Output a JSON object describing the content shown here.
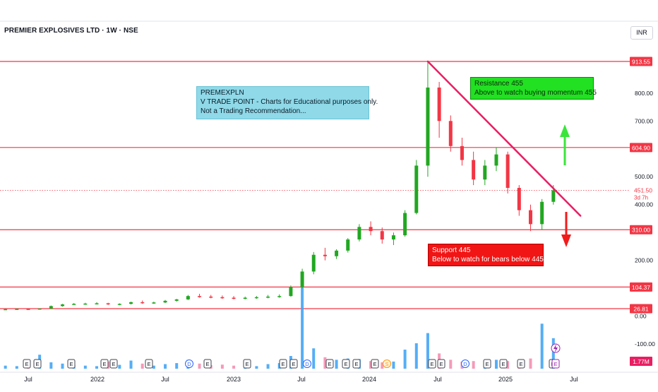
{
  "header": {
    "title": "PREMIER EXPLOSIVES LTD · 1W · NSE",
    "currency": "INR"
  },
  "colors": {
    "up": "#089981",
    "up_candle": "#22a722",
    "down": "#f23645",
    "volume": "#42a5f5",
    "volume_down": "#f48fb1",
    "level_line": "#f23645",
    "trendline": "#e91e63",
    "arrow_up": "#3ae53a",
    "arrow_down": "#f21b1b"
  },
  "notes": {
    "info": [
      "PREMEXPLN",
      "V TRADE POINT - Charts for Educational purposes only.",
      "Not a Trading Recommendation..."
    ],
    "resistance": [
      "Resistance  455",
      "Above to watch buying momentum 455"
    ],
    "support": [
      "Support 445",
      "Below to watch for bears below 445"
    ]
  },
  "chart_data": {
    "type": "candlestick",
    "symbol": "PREMIER EXPLOSIVES LTD",
    "interval": "1W",
    "exchange": "NSE",
    "currency": "INR",
    "x_ticks": [
      "Jul",
      "2022",
      "Jul",
      "2023",
      "Jul",
      "2024",
      "Jul",
      "2025",
      "Jul"
    ],
    "y_ticks": [
      {
        "label": "800.00",
        "value": 800
      },
      {
        "label": "700.00",
        "value": 700
      },
      {
        "label": "500.00",
        "value": 500
      },
      {
        "label": "400.00",
        "value": 400
      },
      {
        "label": "200.00",
        "value": 200
      },
      {
        "label": "0.00",
        "value": 0
      },
      {
        "label": "-100.00",
        "value": -100
      }
    ],
    "horizontal_levels": [
      {
        "label": "913.55",
        "value": 913.55
      },
      {
        "label": "604.90",
        "value": 604.9
      },
      {
        "label": "310.00",
        "value": 310
      },
      {
        "label": "104.37",
        "value": 104.37
      },
      {
        "label": "26.81",
        "value": 26.81
      }
    ],
    "last_price": {
      "label": "451.50",
      "value": 451.5,
      "countdown": "3d 7h"
    },
    "volume_badge": "1.77M",
    "trendline": {
      "from": {
        "date": "2024-06",
        "price": 913.55
      },
      "to": {
        "date": "2025-07",
        "price": 360
      }
    },
    "arrows": [
      {
        "direction": "up",
        "label": ""
      },
      {
        "direction": "down",
        "label": ""
      }
    ],
    "event_markers": [
      "E",
      "E",
      "E",
      "E",
      "E",
      "E",
      "D",
      "E",
      "E",
      "E",
      "E",
      "D",
      "E",
      "E",
      "E",
      "E",
      "S",
      "E",
      "E",
      "D",
      "E",
      "E",
      "E",
      "E",
      "E"
    ],
    "weekly": [
      {
        "date": "2021-05",
        "o": 24,
        "h": 26,
        "l": 22,
        "c": 25,
        "v": 0.12
      },
      {
        "date": "2021-06",
        "o": 25,
        "h": 27,
        "l": 24,
        "c": 26,
        "v": 0.1
      },
      {
        "date": "2021-07",
        "o": 26,
        "h": 28,
        "l": 24,
        "c": 25,
        "v": 0.14
      },
      {
        "date": "2021-08",
        "o": 25,
        "h": 28,
        "l": 23,
        "c": 27,
        "v": 0.55
      },
      {
        "date": "2021-09",
        "o": 27,
        "h": 38,
        "l": 26,
        "c": 36,
        "v": 0.25
      },
      {
        "date": "2021-10",
        "o": 36,
        "h": 44,
        "l": 34,
        "c": 42,
        "v": 0.2
      },
      {
        "date": "2021-11",
        "o": 42,
        "h": 47,
        "l": 40,
        "c": 44,
        "v": 0.15
      },
      {
        "date": "2021-12",
        "o": 44,
        "h": 48,
        "l": 41,
        "c": 45,
        "v": 0.12
      },
      {
        "date": "2022-01",
        "o": 45,
        "h": 50,
        "l": 42,
        "c": 46,
        "v": 0.1
      },
      {
        "date": "2022-02",
        "o": 46,
        "h": 48,
        "l": 40,
        "c": 43,
        "v": 0.28
      },
      {
        "date": "2022-03",
        "o": 43,
        "h": 46,
        "l": 39,
        "c": 44,
        "v": 0.15
      },
      {
        "date": "2022-04",
        "o": 44,
        "h": 52,
        "l": 42,
        "c": 50,
        "v": 0.32
      },
      {
        "date": "2022-05",
        "o": 50,
        "h": 56,
        "l": 44,
        "c": 47,
        "v": 0.2
      },
      {
        "date": "2022-06",
        "o": 47,
        "h": 52,
        "l": 44,
        "c": 49,
        "v": 0.12
      },
      {
        "date": "2022-07",
        "o": 49,
        "h": 58,
        "l": 47,
        "c": 55,
        "v": 0.18
      },
      {
        "date": "2022-08",
        "o": 55,
        "h": 62,
        "l": 52,
        "c": 60,
        "v": 0.22
      },
      {
        "date": "2022-09",
        "o": 60,
        "h": 76,
        "l": 58,
        "c": 72,
        "v": 0.35
      },
      {
        "date": "2022-10",
        "o": 72,
        "h": 80,
        "l": 66,
        "c": 70,
        "v": 0.2
      },
      {
        "date": "2022-11",
        "o": 70,
        "h": 76,
        "l": 64,
        "c": 68,
        "v": 0.14
      },
      {
        "date": "2022-12",
        "o": 68,
        "h": 74,
        "l": 62,
        "c": 66,
        "v": 0.16
      },
      {
        "date": "2023-01",
        "o": 66,
        "h": 72,
        "l": 60,
        "c": 64,
        "v": 0.12
      },
      {
        "date": "2023-02",
        "o": 64,
        "h": 70,
        "l": 60,
        "c": 66,
        "v": 0.14
      },
      {
        "date": "2023-03",
        "o": 66,
        "h": 72,
        "l": 62,
        "c": 68,
        "v": 0.1
      },
      {
        "date": "2023-04",
        "o": 68,
        "h": 76,
        "l": 64,
        "c": 70,
        "v": 0.18
      },
      {
        "date": "2023-05",
        "o": 70,
        "h": 78,
        "l": 66,
        "c": 72,
        "v": 0.22
      },
      {
        "date": "2023-06",
        "o": 72,
        "h": 110,
        "l": 70,
        "c": 104,
        "v": 0.5
      },
      {
        "date": "2023-07",
        "o": 104,
        "h": 170,
        "l": 100,
        "c": 160,
        "v": 3.8
      },
      {
        "date": "2023-08",
        "o": 160,
        "h": 230,
        "l": 150,
        "c": 220,
        "v": 0.8
      },
      {
        "date": "2023-09",
        "o": 220,
        "h": 245,
        "l": 200,
        "c": 215,
        "v": 0.45
      },
      {
        "date": "2023-10",
        "o": 215,
        "h": 240,
        "l": 205,
        "c": 235,
        "v": 0.35
      },
      {
        "date": "2023-11",
        "o": 235,
        "h": 280,
        "l": 228,
        "c": 275,
        "v": 0.4
      },
      {
        "date": "2023-12",
        "o": 275,
        "h": 330,
        "l": 268,
        "c": 320,
        "v": 0.38
      },
      {
        "date": "2024-01",
        "o": 320,
        "h": 340,
        "l": 290,
        "c": 305,
        "v": 0.3
      },
      {
        "date": "2024-02",
        "o": 305,
        "h": 318,
        "l": 260,
        "c": 275,
        "v": 0.25
      },
      {
        "date": "2024-03",
        "o": 275,
        "h": 300,
        "l": 255,
        "c": 290,
        "v": 0.28
      },
      {
        "date": "2024-04",
        "o": 290,
        "h": 380,
        "l": 285,
        "c": 370,
        "v": 0.75
      },
      {
        "date": "2024-05",
        "o": 370,
        "h": 560,
        "l": 365,
        "c": 540,
        "v": 1.0
      },
      {
        "date": "2024-06",
        "o": 540,
        "h": 913.55,
        "l": 500,
        "c": 820,
        "v": 1.4
      },
      {
        "date": "2024-07",
        "o": 820,
        "h": 840,
        "l": 640,
        "c": 700,
        "v": 0.6
      },
      {
        "date": "2024-08",
        "o": 700,
        "h": 720,
        "l": 590,
        "c": 610,
        "v": 0.35
      },
      {
        "date": "2024-09",
        "o": 610,
        "h": 640,
        "l": 540,
        "c": 560,
        "v": 0.28
      },
      {
        "date": "2024-10",
        "o": 560,
        "h": 590,
        "l": 470,
        "c": 490,
        "v": 0.3
      },
      {
        "date": "2024-11",
        "o": 490,
        "h": 560,
        "l": 470,
        "c": 540,
        "v": 0.32
      },
      {
        "date": "2024-12",
        "o": 540,
        "h": 605,
        "l": 520,
        "c": 580,
        "v": 0.35
      },
      {
        "date": "2025-01",
        "o": 580,
        "h": 590,
        "l": 440,
        "c": 460,
        "v": 0.3
      },
      {
        "date": "2025-02",
        "o": 460,
        "h": 470,
        "l": 360,
        "c": 380,
        "v": 0.26
      },
      {
        "date": "2025-03",
        "o": 380,
        "h": 400,
        "l": 305,
        "c": 330,
        "v": 0.4
      },
      {
        "date": "2025-04",
        "o": 330,
        "h": 420,
        "l": 310,
        "c": 410,
        "v": 1.77
      },
      {
        "date": "2025-05",
        "o": 410,
        "h": 470,
        "l": 400,
        "c": 451.5,
        "v": 1.2
      }
    ]
  }
}
